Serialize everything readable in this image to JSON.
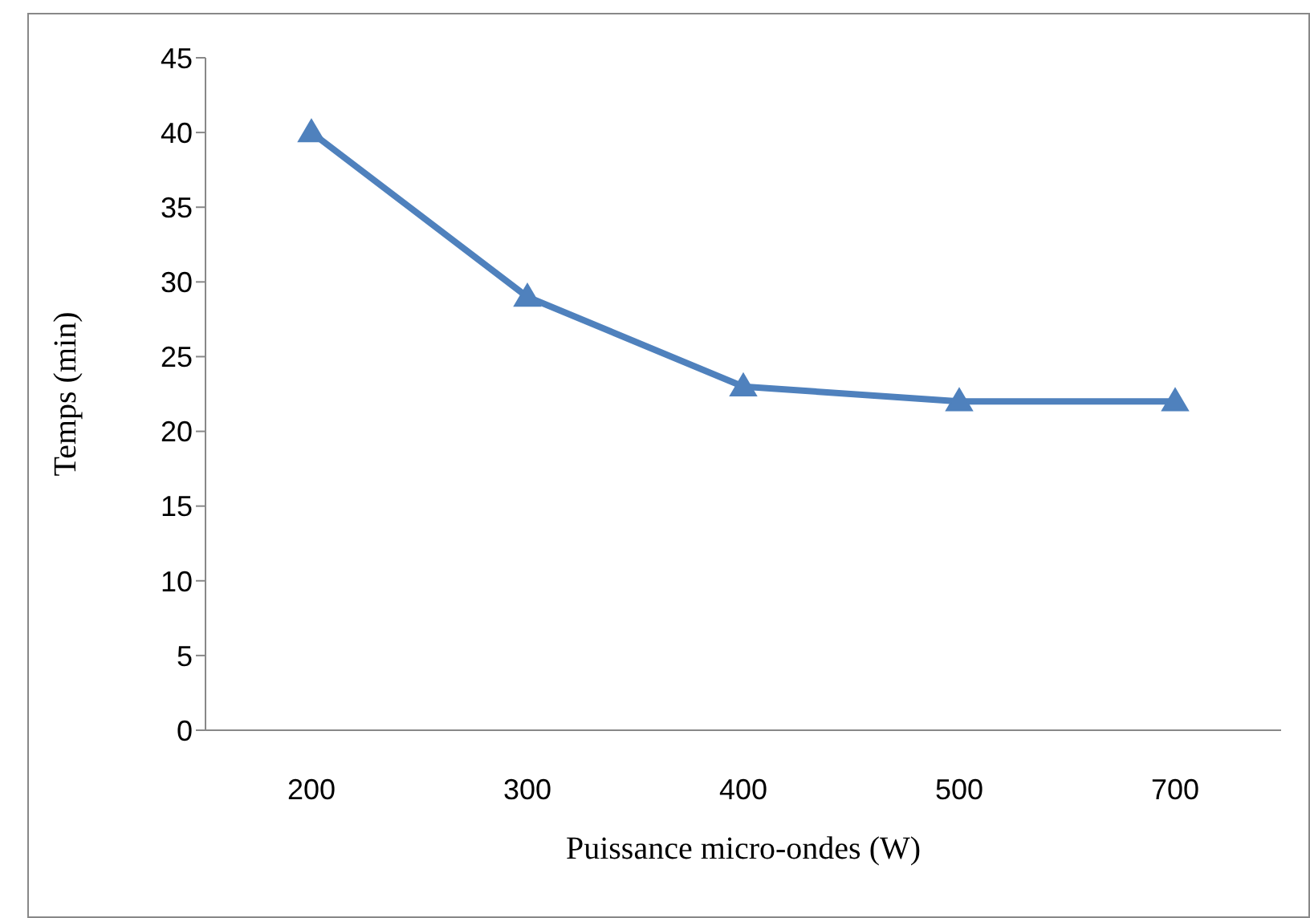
{
  "chart_data": {
    "type": "line",
    "xlabel": "Puissance micro-ondes (W)",
    "ylabel": "Temps (min)",
    "categories": [
      "200",
      "300",
      "400",
      "500",
      "700"
    ],
    "series": [
      {
        "color": "#4f81bd",
        "values": [
          40,
          29,
          23,
          22,
          22
        ]
      }
    ],
    "ylim": [
      0,
      45
    ],
    "yticks": [
      0,
      5,
      10,
      15,
      20,
      25,
      30,
      35,
      40,
      45
    ],
    "grid": false,
    "legend": false,
    "marker": "triangle",
    "line_style": "solid"
  }
}
